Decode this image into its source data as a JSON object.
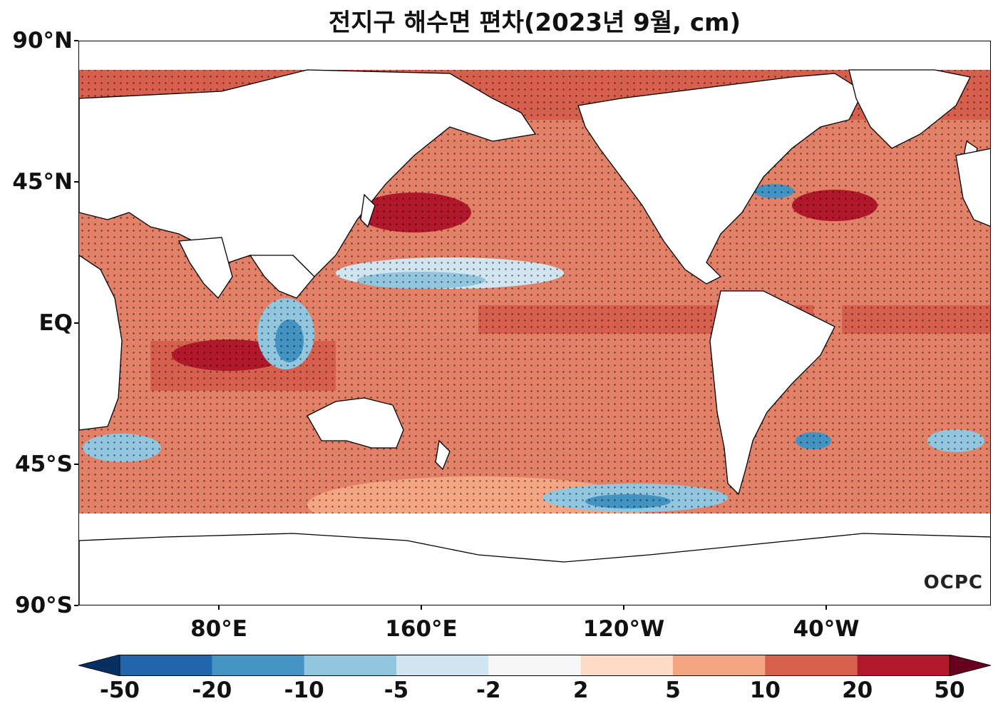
{
  "title": "전지구 해수면 편차(2023년 9월, cm)",
  "watermark": "OCPC",
  "axes": {
    "lat_labels": [
      "90°N",
      "45°N",
      "EQ",
      "45°S",
      "90°S"
    ],
    "lon_labels": [
      "80°E",
      "160°E",
      "120°W",
      "40°W"
    ]
  },
  "colorbar": {
    "labels": [
      "-50",
      "-20",
      "-10",
      "-5",
      "-2",
      "2",
      "5",
      "10",
      "20",
      "50"
    ],
    "colors": [
      "#053061",
      "#2166ac",
      "#4393c3",
      "#92c5de",
      "#d1e5f0",
      "#f7f7f7",
      "#fddbc7",
      "#f4a582",
      "#d6604d",
      "#b2182b",
      "#67001f"
    ]
  },
  "style": {
    "land_color": "#ffffff",
    "dominant_anomaly_color": "#d6604d",
    "significance_dot_color": "#000000"
  }
}
